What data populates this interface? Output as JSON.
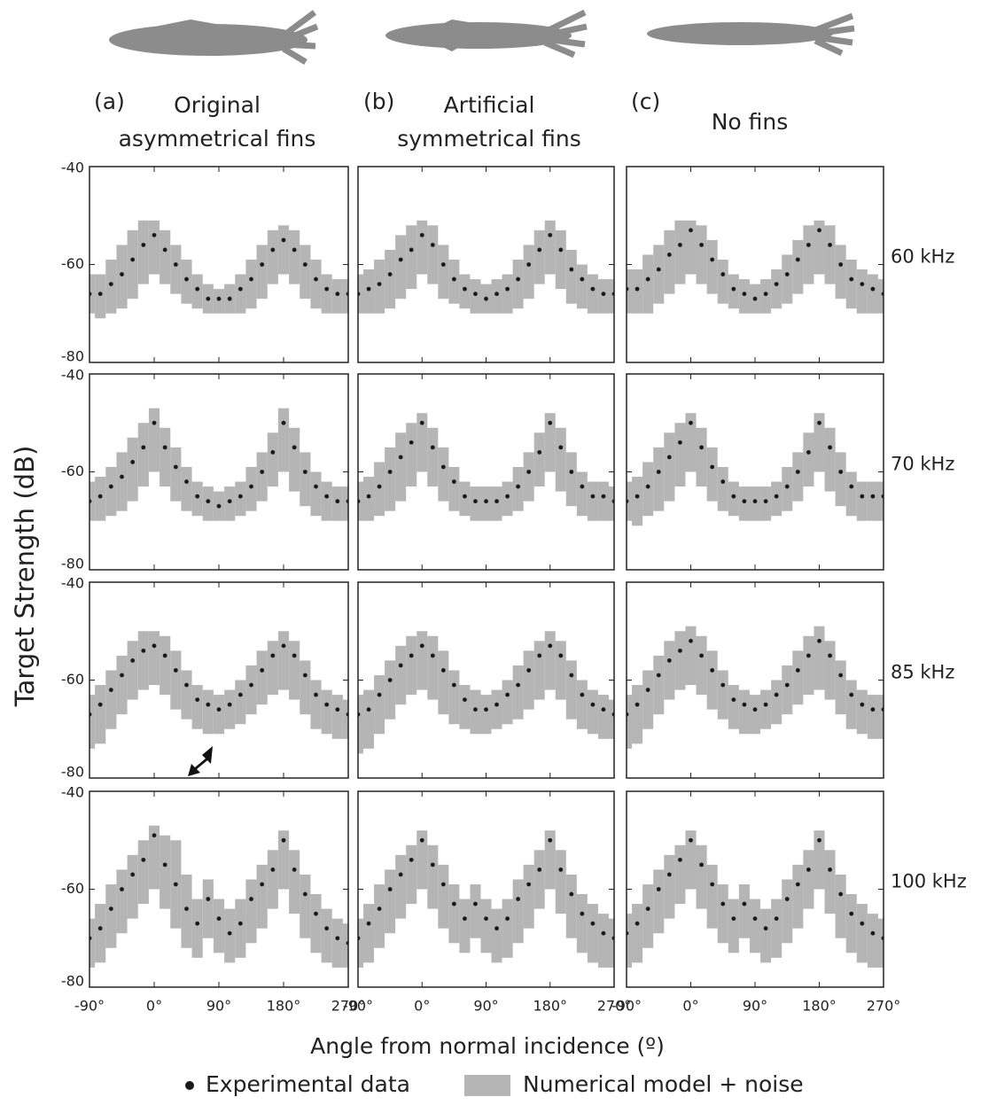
{
  "chart_data": {
    "type": "panels",
    "ylabel": "Target Strength (dB)",
    "xlabel": "Angle from normal incidence (º)",
    "columns": [
      {
        "tag": "(a)",
        "title": "Original asymmetrical fins"
      },
      {
        "tag": "(b)",
        "title": "Artificial symmetrical fins"
      },
      {
        "tag": "(c)",
        "title": "No fins"
      }
    ],
    "rows": [
      "60 kHz",
      "70 kHz",
      "85 kHz",
      "100 kHz"
    ],
    "legend": [
      {
        "name": "Experimental data",
        "color": "#1a1a1a"
      },
      {
        "name": "Numerical model + noise",
        "color": "#b5b5b5"
      }
    ],
    "x": [
      -90,
      -75,
      -60,
      -45,
      -30,
      -15,
      0,
      15,
      30,
      45,
      60,
      75,
      90,
      105,
      120,
      135,
      150,
      165,
      180,
      195,
      210,
      225,
      240,
      255,
      270
    ],
    "xlim": [
      -90,
      270
    ],
    "xticks": [
      {
        "value": -90,
        "label": "-90°"
      },
      {
        "value": 0,
        "label": "0°"
      },
      {
        "value": 90,
        "label": "90°"
      },
      {
        "value": 180,
        "label": "180°"
      },
      {
        "value": 270,
        "label": "270°"
      }
    ],
    "ylim": [
      -80,
      -40
    ],
    "yticks": [
      -80,
      -60,
      -40
    ],
    "panels": [
      {
        "experimental": [
          -66,
          -66,
          -64,
          -62,
          -59,
          -56,
          -54,
          -57,
          -60,
          -63,
          -65,
          -67,
          -67,
          -67,
          -65,
          -63,
          -60,
          -57,
          -55,
          -57,
          -60,
          -63,
          -65,
          -66,
          -66
        ],
        "model_high": [
          -62,
          -62,
          -59,
          -56,
          -53,
          -51,
          -51,
          -53,
          -56,
          -59,
          -62,
          -64,
          -65,
          -64,
          -62,
          -59,
          -56,
          -53,
          -52,
          -53,
          -56,
          -59,
          -62,
          -63,
          -63
        ],
        "model_low": [
          -70,
          -71,
          -70,
          -69,
          -67,
          -64,
          -62,
          -64,
          -66,
          -68,
          -69,
          -70,
          -70,
          -70,
          -70,
          -69,
          -67,
          -64,
          -62,
          -64,
          -67,
          -69,
          -70,
          -70,
          -70
        ]
      },
      {
        "experimental": [
          -66,
          -65,
          -64,
          -62,
          -59,
          -57,
          -54,
          -56,
          -60,
          -63,
          -65,
          -66,
          -67,
          -66,
          -65,
          -63,
          -60,
          -57,
          -54,
          -57,
          -61,
          -63,
          -65,
          -66,
          -66
        ],
        "model_high": [
          -62,
          -61,
          -59,
          -57,
          -54,
          -52,
          -51,
          -52,
          -56,
          -59,
          -62,
          -63,
          -64,
          -63,
          -62,
          -59,
          -56,
          -53,
          -51,
          -53,
          -57,
          -60,
          -62,
          -63,
          -63
        ],
        "model_low": [
          -70,
          -70,
          -70,
          -69,
          -67,
          -65,
          -62,
          -64,
          -67,
          -68,
          -69,
          -70,
          -70,
          -70,
          -70,
          -69,
          -67,
          -64,
          -62,
          -65,
          -68,
          -69,
          -70,
          -70,
          -70
        ]
      },
      {
        "experimental": [
          -65,
          -65,
          -63,
          -61,
          -58,
          -56,
          -53,
          -56,
          -59,
          -62,
          -65,
          -66,
          -67,
          -66,
          -64,
          -62,
          -59,
          -56,
          -53,
          -56,
          -60,
          -63,
          -64,
          -65,
          -66
        ],
        "model_high": [
          -61,
          -61,
          -58,
          -56,
          -53,
          -51,
          -51,
          -52,
          -55,
          -59,
          -62,
          -63,
          -64,
          -63,
          -61,
          -58,
          -55,
          -52,
          -51,
          -52,
          -56,
          -59,
          -61,
          -62,
          -63
        ],
        "model_low": [
          -70,
          -70,
          -70,
          -68,
          -66,
          -64,
          -62,
          -64,
          -66,
          -68,
          -69,
          -70,
          -70,
          -70,
          -69,
          -68,
          -66,
          -64,
          -62,
          -64,
          -67,
          -69,
          -70,
          -70,
          -70
        ]
      },
      {
        "experimental": [
          -66,
          -65,
          -63,
          -61,
          -58,
          -55,
          -50,
          -55,
          -59,
          -62,
          -65,
          -66,
          -67,
          -66,
          -65,
          -63,
          -60,
          -56,
          -50,
          -55,
          -60,
          -63,
          -65,
          -66,
          -66
        ],
        "model_high": [
          -62,
          -61,
          -59,
          -56,
          -53,
          -50,
          -47,
          -51,
          -55,
          -59,
          -62,
          -63,
          -64,
          -63,
          -62,
          -59,
          -56,
          -52,
          -47,
          -51,
          -56,
          -60,
          -62,
          -63,
          -63
        ],
        "model_low": [
          -70,
          -70,
          -69,
          -68,
          -66,
          -63,
          -60,
          -63,
          -66,
          -68,
          -69,
          -70,
          -70,
          -70,
          -69,
          -68,
          -66,
          -63,
          -60,
          -64,
          -67,
          -69,
          -70,
          -70,
          -70
        ]
      },
      {
        "experimental": [
          -66,
          -65,
          -63,
          -60,
          -57,
          -54,
          -50,
          -55,
          -59,
          -62,
          -65,
          -66,
          -66,
          -66,
          -65,
          -63,
          -60,
          -56,
          -50,
          -55,
          -60,
          -63,
          -65,
          -65,
          -66
        ],
        "model_high": [
          -62,
          -61,
          -58,
          -55,
          -52,
          -50,
          -48,
          -51,
          -55,
          -59,
          -62,
          -63,
          -63,
          -63,
          -62,
          -59,
          -56,
          -52,
          -48,
          -51,
          -56,
          -60,
          -62,
          -62,
          -63
        ],
        "model_low": [
          -70,
          -70,
          -69,
          -68,
          -66,
          -63,
          -60,
          -63,
          -66,
          -68,
          -69,
          -70,
          -70,
          -70,
          -69,
          -68,
          -66,
          -63,
          -60,
          -64,
          -67,
          -69,
          -70,
          -70,
          -70
        ]
      },
      {
        "experimental": [
          -66,
          -65,
          -63,
          -60,
          -57,
          -54,
          -50,
          -55,
          -59,
          -62,
          -65,
          -66,
          -66,
          -66,
          -65,
          -63,
          -60,
          -56,
          -50,
          -55,
          -60,
          -63,
          -65,
          -65,
          -65
        ],
        "model_high": [
          -62,
          -61,
          -58,
          -55,
          -52,
          -50,
          -48,
          -51,
          -55,
          -59,
          -62,
          -63,
          -63,
          -63,
          -62,
          -59,
          -56,
          -52,
          -48,
          -51,
          -56,
          -60,
          -62,
          -62,
          -62
        ],
        "model_low": [
          -70,
          -71,
          -69,
          -68,
          -66,
          -63,
          -60,
          -63,
          -66,
          -68,
          -69,
          -70,
          -70,
          -70,
          -69,
          -68,
          -66,
          -63,
          -60,
          -64,
          -67,
          -69,
          -70,
          -70,
          -70
        ]
      },
      {
        "experimental": [
          -67,
          -65,
          -62,
          -59,
          -56,
          -54,
          -53,
          -55,
          -58,
          -61,
          -64,
          -65,
          -66,
          -65,
          -63,
          -61,
          -58,
          -55,
          -53,
          -55,
          -59,
          -63,
          -65,
          -66,
          -67
        ],
        "model_high": [
          -63,
          -61,
          -58,
          -55,
          -52,
          -50,
          -50,
          -51,
          -54,
          -58,
          -61,
          -62,
          -63,
          -62,
          -60,
          -57,
          -54,
          -52,
          -50,
          -52,
          -56,
          -60,
          -62,
          -63,
          -64
        ],
        "model_low": [
          -74,
          -73,
          -70,
          -67,
          -64,
          -62,
          -61,
          -63,
          -66,
          -68,
          -70,
          -71,
          -71,
          -70,
          -69,
          -67,
          -65,
          -63,
          -62,
          -64,
          -67,
          -70,
          -71,
          -72,
          -72
        ]
      },
      {
        "experimental": [
          -67,
          -66,
          -63,
          -60,
          -57,
          -55,
          -53,
          -55,
          -58,
          -61,
          -64,
          -66,
          -66,
          -65,
          -63,
          -61,
          -58,
          -55,
          -53,
          -55,
          -59,
          -63,
          -65,
          -66,
          -67
        ],
        "model_high": [
          -63,
          -62,
          -59,
          -56,
          -53,
          -51,
          -50,
          -51,
          -54,
          -58,
          -61,
          -62,
          -63,
          -62,
          -60,
          -57,
          -54,
          -52,
          -50,
          -52,
          -56,
          -60,
          -62,
          -63,
          -64
        ],
        "model_low": [
          -75,
          -74,
          -71,
          -68,
          -65,
          -63,
          -62,
          -64,
          -67,
          -69,
          -70,
          -71,
          -71,
          -70,
          -69,
          -68,
          -66,
          -64,
          -62,
          -64,
          -68,
          -70,
          -71,
          -72,
          -72
        ]
      },
      {
        "experimental": [
          -67,
          -65,
          -62,
          -59,
          -56,
          -54,
          -52,
          -55,
          -58,
          -61,
          -64,
          -65,
          -66,
          -65,
          -63,
          -61,
          -58,
          -55,
          -52,
          -55,
          -59,
          -63,
          -65,
          -66,
          -66
        ],
        "model_high": [
          -63,
          -61,
          -58,
          -55,
          -52,
          -50,
          -49,
          -51,
          -54,
          -58,
          -61,
          -62,
          -63,
          -62,
          -60,
          -57,
          -54,
          -51,
          -49,
          -52,
          -56,
          -60,
          -62,
          -63,
          -63
        ],
        "model_low": [
          -74,
          -73,
          -70,
          -67,
          -64,
          -62,
          -61,
          -63,
          -66,
          -68,
          -70,
          -71,
          -71,
          -70,
          -69,
          -67,
          -65,
          -63,
          -62,
          -64,
          -67,
          -70,
          -71,
          -72,
          -72
        ]
      },
      {
        "experimental": [
          -70,
          -68,
          -64,
          -60,
          -57,
          -54,
          -49,
          -55,
          -59,
          -64,
          -67,
          -62,
          -66,
          -69,
          -67,
          -62,
          -59,
          -56,
          -50,
          -56,
          -61,
          -65,
          -68,
          -70,
          -71
        ],
        "model_high": [
          -66,
          -63,
          -59,
          -56,
          -53,
          -50,
          -47,
          -49,
          -50,
          -57,
          -62,
          -58,
          -62,
          -64,
          -62,
          -58,
          -55,
          -52,
          -48,
          -52,
          -57,
          -61,
          -64,
          -66,
          -67
        ],
        "model_low": [
          -76,
          -75,
          -72,
          -69,
          -66,
          -63,
          -60,
          -64,
          -68,
          -72,
          -74,
          -70,
          -73,
          -75,
          -74,
          -71,
          -68,
          -64,
          -60,
          -65,
          -70,
          -73,
          -75,
          -76,
          -76
        ]
      },
      {
        "experimental": [
          -70,
          -67,
          -64,
          -60,
          -57,
          -54,
          -50,
          -55,
          -59,
          -63,
          -66,
          -63,
          -66,
          -68,
          -66,
          -62,
          -59,
          -56,
          -50,
          -56,
          -61,
          -65,
          -67,
          -69,
          -70
        ],
        "model_high": [
          -66,
          -63,
          -59,
          -56,
          -53,
          -51,
          -48,
          -51,
          -55,
          -59,
          -62,
          -59,
          -62,
          -64,
          -62,
          -58,
          -55,
          -52,
          -48,
          -52,
          -57,
          -61,
          -63,
          -65,
          -66
        ],
        "model_low": [
          -76,
          -75,
          -72,
          -69,
          -66,
          -63,
          -60,
          -64,
          -68,
          -71,
          -73,
          -70,
          -73,
          -75,
          -74,
          -71,
          -68,
          -64,
          -60,
          -65,
          -70,
          -73,
          -75,
          -76,
          -76
        ]
      },
      {
        "experimental": [
          -69,
          -67,
          -64,
          -60,
          -57,
          -54,
          -50,
          -55,
          -59,
          -63,
          -66,
          -63,
          -66,
          -68,
          -66,
          -62,
          -59,
          -56,
          -50,
          -56,
          -61,
          -65,
          -67,
          -69,
          -70
        ],
        "model_high": [
          -65,
          -63,
          -59,
          -56,
          -53,
          -51,
          -48,
          -51,
          -55,
          -59,
          -62,
          -59,
          -62,
          -64,
          -62,
          -58,
          -55,
          -52,
          -48,
          -52,
          -57,
          -61,
          -63,
          -65,
          -66
        ],
        "model_low": [
          -76,
          -75,
          -72,
          -69,
          -66,
          -63,
          -60,
          -64,
          -68,
          -71,
          -73,
          -70,
          -73,
          -75,
          -74,
          -71,
          -68,
          -64,
          -60,
          -65,
          -70,
          -73,
          -75,
          -76,
          -76
        ]
      }
    ]
  }
}
